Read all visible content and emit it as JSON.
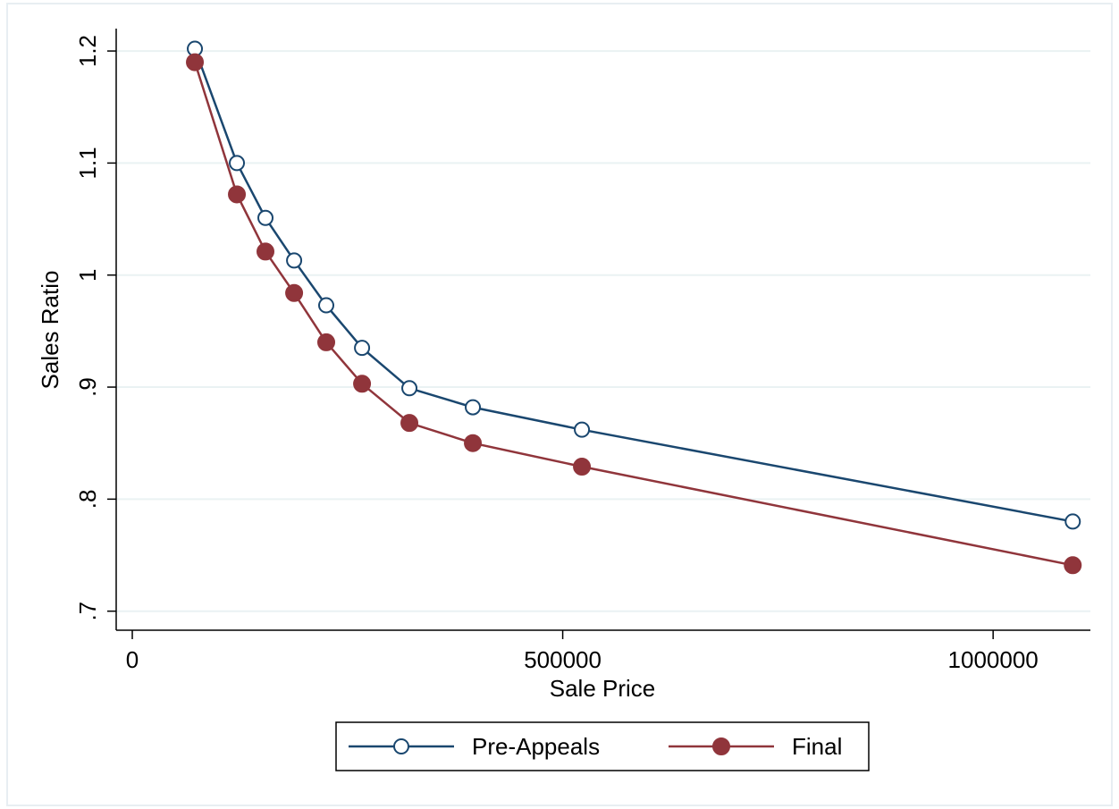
{
  "chart_data": {
    "type": "line",
    "x_label": "Sale Price",
    "y_label": "Sales Ratio",
    "x": [
      72700,
      121500,
      154700,
      188000,
      225300,
      266900,
      321900,
      395600,
      522300,
      1092500
    ],
    "series": [
      {
        "name": "Pre-Appeals",
        "color": "#1a476f",
        "marker": "hollow",
        "values": [
          1.202,
          1.1,
          1.051,
          1.013,
          0.973,
          0.935,
          0.899,
          0.882,
          0.862,
          0.78
        ]
      },
      {
        "name": "Final",
        "color": "#90353b",
        "marker": "filled",
        "values": [
          1.19,
          1.072,
          1.021,
          0.984,
          0.94,
          0.903,
          0.868,
          0.85,
          0.829,
          0.741
        ]
      }
    ],
    "xlim": [
      -18700,
      1113000
    ],
    "ylim": [
      0.683,
      1.22
    ],
    "xticks": [
      0,
      500000,
      1000000
    ],
    "yticks": [
      {
        "value": 0.7,
        "label": ".7"
      },
      {
        "value": 0.8,
        "label": ".8"
      },
      {
        "value": 0.9,
        "label": ".9"
      },
      1,
      1.1,
      1.2
    ],
    "grid": true,
    "legend": "bottom"
  }
}
